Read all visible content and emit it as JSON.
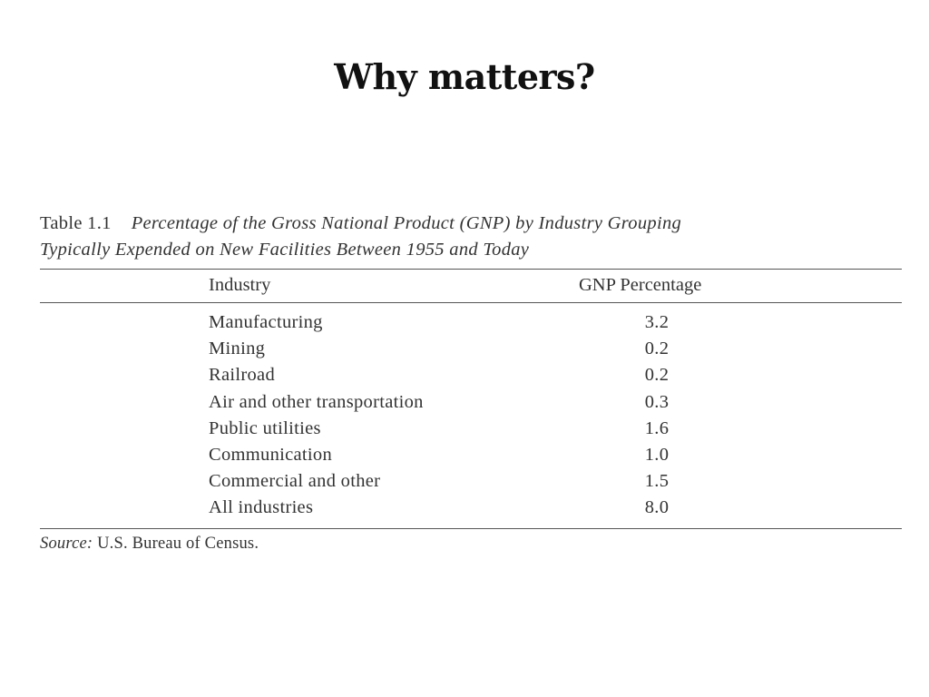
{
  "slide": {
    "title": "Why matters?"
  },
  "table": {
    "label": "Table 1.1",
    "caption": "Percentage of the Gross National Product (GNP) by Industry Grouping",
    "caption_line2": "Typically Expended on New Facilities Between 1955 and Today",
    "headers": {
      "industry": "Industry",
      "gnp": "GNP Percentage"
    },
    "rows": [
      {
        "industry": "Manufacturing",
        "gnp": "3.2"
      },
      {
        "industry": "Mining",
        "gnp": "0.2"
      },
      {
        "industry": "Railroad",
        "gnp": "0.2"
      },
      {
        "industry": "Air and other transportation",
        "gnp": "0.3"
      },
      {
        "industry": "Public utilities",
        "gnp": "1.6"
      },
      {
        "industry": "Communication",
        "gnp": "1.0"
      },
      {
        "industry": "Commercial and other",
        "gnp": "1.5"
      },
      {
        "industry": "All industries",
        "gnp": "8.0"
      }
    ],
    "source_label": "Source:",
    "source_text": "U.S. Bureau of Census."
  }
}
